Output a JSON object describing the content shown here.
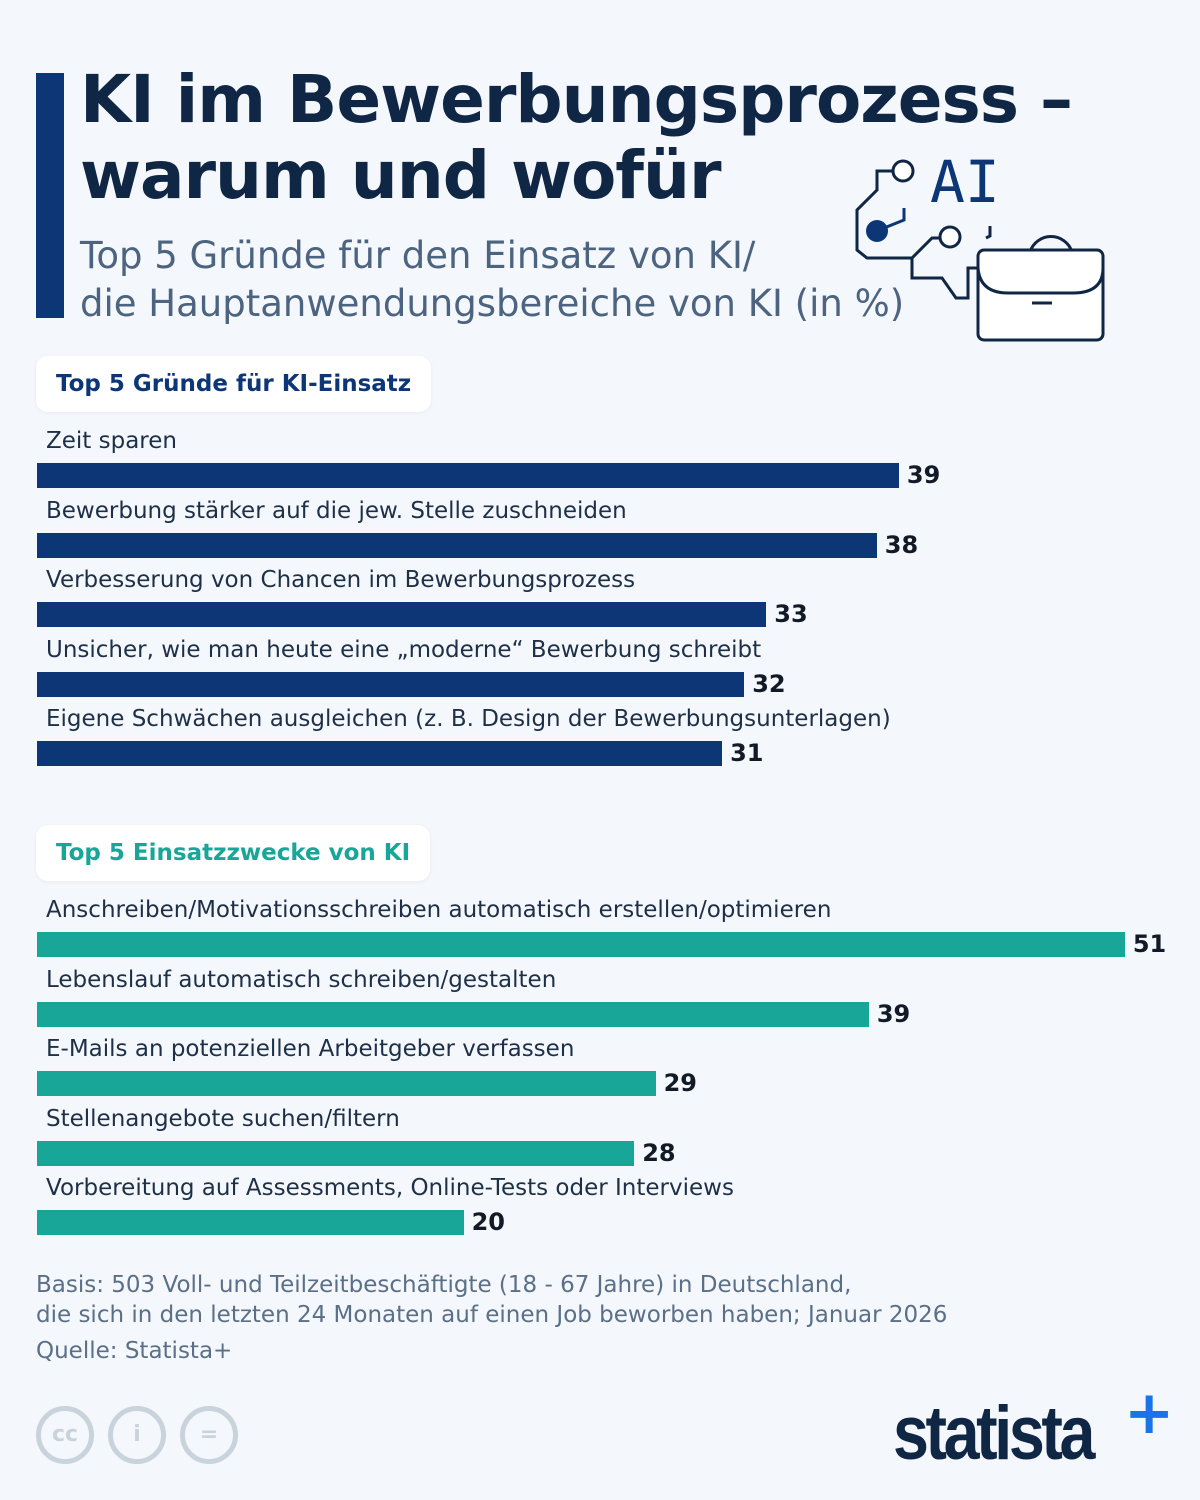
{
  "title_line1": "KI im Bewerbungsprozess –",
  "title_line2": "warum und wofür",
  "subtitle_line1": "Top 5 Gründe für den Einsatz von KI/",
  "subtitle_line2": "die Hauptanwendungsbereiche von KI (in %)",
  "icon": {
    "text": "AI",
    "name": "ai-briefcase-icon"
  },
  "chart_data": [
    {
      "type": "bar",
      "orientation": "horizontal",
      "title": "Top 5 Gründe für KI-Einsatz",
      "color": "#0d3677",
      "categories": [
        "Zeit sparen",
        "Bewerbung stärker auf die jew. Stelle zuschneiden",
        "Verbesserung von Chancen im Bewerbungsprozess",
        "Unsicher, wie man heute eine „moderne“ Bewerbung schreibt",
        "Eigene Schwächen ausgleichen (z. B. Design der Bewerbungsunterlagen)"
      ],
      "values": [
        39,
        38,
        33,
        32,
        31
      ],
      "labels": [
        "39",
        "38",
        "33",
        "32",
        "31"
      ],
      "unit": "%"
    },
    {
      "type": "bar",
      "orientation": "horizontal",
      "title": "Top 5 Einsatzzwecke von KI",
      "color": "#17a697",
      "categories": [
        "Anschreiben/Motivationsschreiben automatisch erstellen/optimieren",
        "Lebenslauf automatisch schreiben/gestalten",
        "E-Mails an potenziellen Arbeitgeber verfassen",
        "Stellenangebote suchen/filtern",
        "Vorbereitung auf Assessments, Online-Tests oder Interviews"
      ],
      "values": [
        51,
        39,
        29,
        28,
        20
      ],
      "labels": [
        "51",
        "39",
        "29",
        "28",
        "20"
      ],
      "unit": "%"
    }
  ],
  "footer": {
    "basis_line1": "Basis: 503 Voll- und Teilzeitbeschäftigte (18 - 67 Jahre) in Deutschland,",
    "basis_line2": "die sich in den letzten 24 Monaten auf einen Job beworben haben; Januar 2026",
    "source": "Quelle: Statista+"
  },
  "license": [
    "cc",
    "i",
    "="
  ],
  "logo": {
    "text": "statista",
    "plus": "+"
  }
}
